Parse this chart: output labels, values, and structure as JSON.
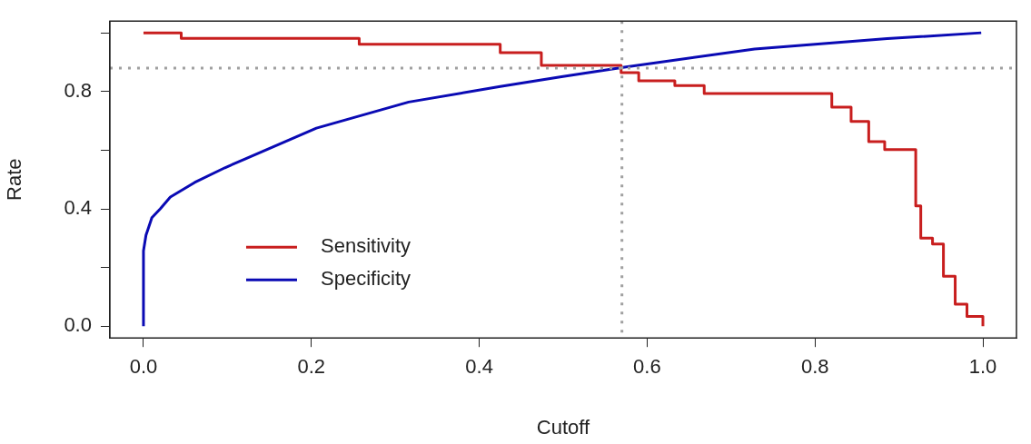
{
  "chart_data": {
    "type": "line",
    "xlabel": "Cutoff",
    "ylabel": "Rate",
    "xlim": [
      -0.04,
      1.04
    ],
    "ylim": [
      -0.04,
      1.04
    ],
    "xticks": [
      {
        "value": 0,
        "label": "0.0"
      },
      {
        "value": 0.2,
        "label": "0.2"
      },
      {
        "value": 0.4,
        "label": "0.4"
      },
      {
        "value": 0.6,
        "label": "0.6"
      },
      {
        "value": 0.8,
        "label": "0.8"
      },
      {
        "value": 1,
        "label": "1.0"
      }
    ],
    "yticks": [
      {
        "value": 0,
        "label": "0.0"
      },
      {
        "value": 0.2,
        "label": null
      },
      {
        "value": 0.4,
        "label": "0.4"
      },
      {
        "value": 0.6,
        "label": null
      },
      {
        "value": 0.8,
        "label": "0.8"
      },
      {
        "value": 1,
        "label": null
      }
    ],
    "grid": false,
    "legend": "bottom left",
    "marker": "none",
    "line_style": "solid",
    "series": [
      {
        "name": "Sensitivity",
        "type": "step",
        "color": "#c81e1e",
        "x": [
          0,
          0.045,
          0.257,
          0.425,
          0.474,
          0.569,
          0.59,
          0.633,
          0.668,
          0.801,
          0.82,
          0.843,
          0.864,
          0.883,
          0.92,
          0.926,
          0.94,
          0.953,
          0.967,
          0.981,
          1.0
        ],
        "values": [
          1.0,
          0.981,
          0.961,
          0.932,
          0.889,
          0.864,
          0.836,
          0.82,
          0.793,
          0.793,
          0.747,
          0.698,
          0.629,
          0.602,
          0.41,
          0.3,
          0.28,
          0.17,
          0.075,
          0.033,
          0
        ]
      },
      {
        "name": "Specificity",
        "type": "line",
        "color": "#0a0ab4",
        "x": [
          0,
          0,
          0.003,
          0.01,
          0.02,
          0.032,
          0.061,
          0.097,
          0.121,
          0.206,
          0.316,
          0.425,
          0.498,
          0.571,
          0.728,
          0.886,
          0.998
        ],
        "values": [
          0,
          0.257,
          0.31,
          0.37,
          0.4,
          0.44,
          0.49,
          0.54,
          0.57,
          0.675,
          0.764,
          0.817,
          0.85,
          0.882,
          0.945,
          0.98,
          1.0
        ]
      }
    ],
    "ref_lines": [
      {
        "axis": "x",
        "value": 0.57,
        "color": "#a0a0a0",
        "line_style": "dotted"
      },
      {
        "axis": "y",
        "value": 0.88,
        "color": "#a0a0a0",
        "line_style": "dotted"
      }
    ]
  }
}
